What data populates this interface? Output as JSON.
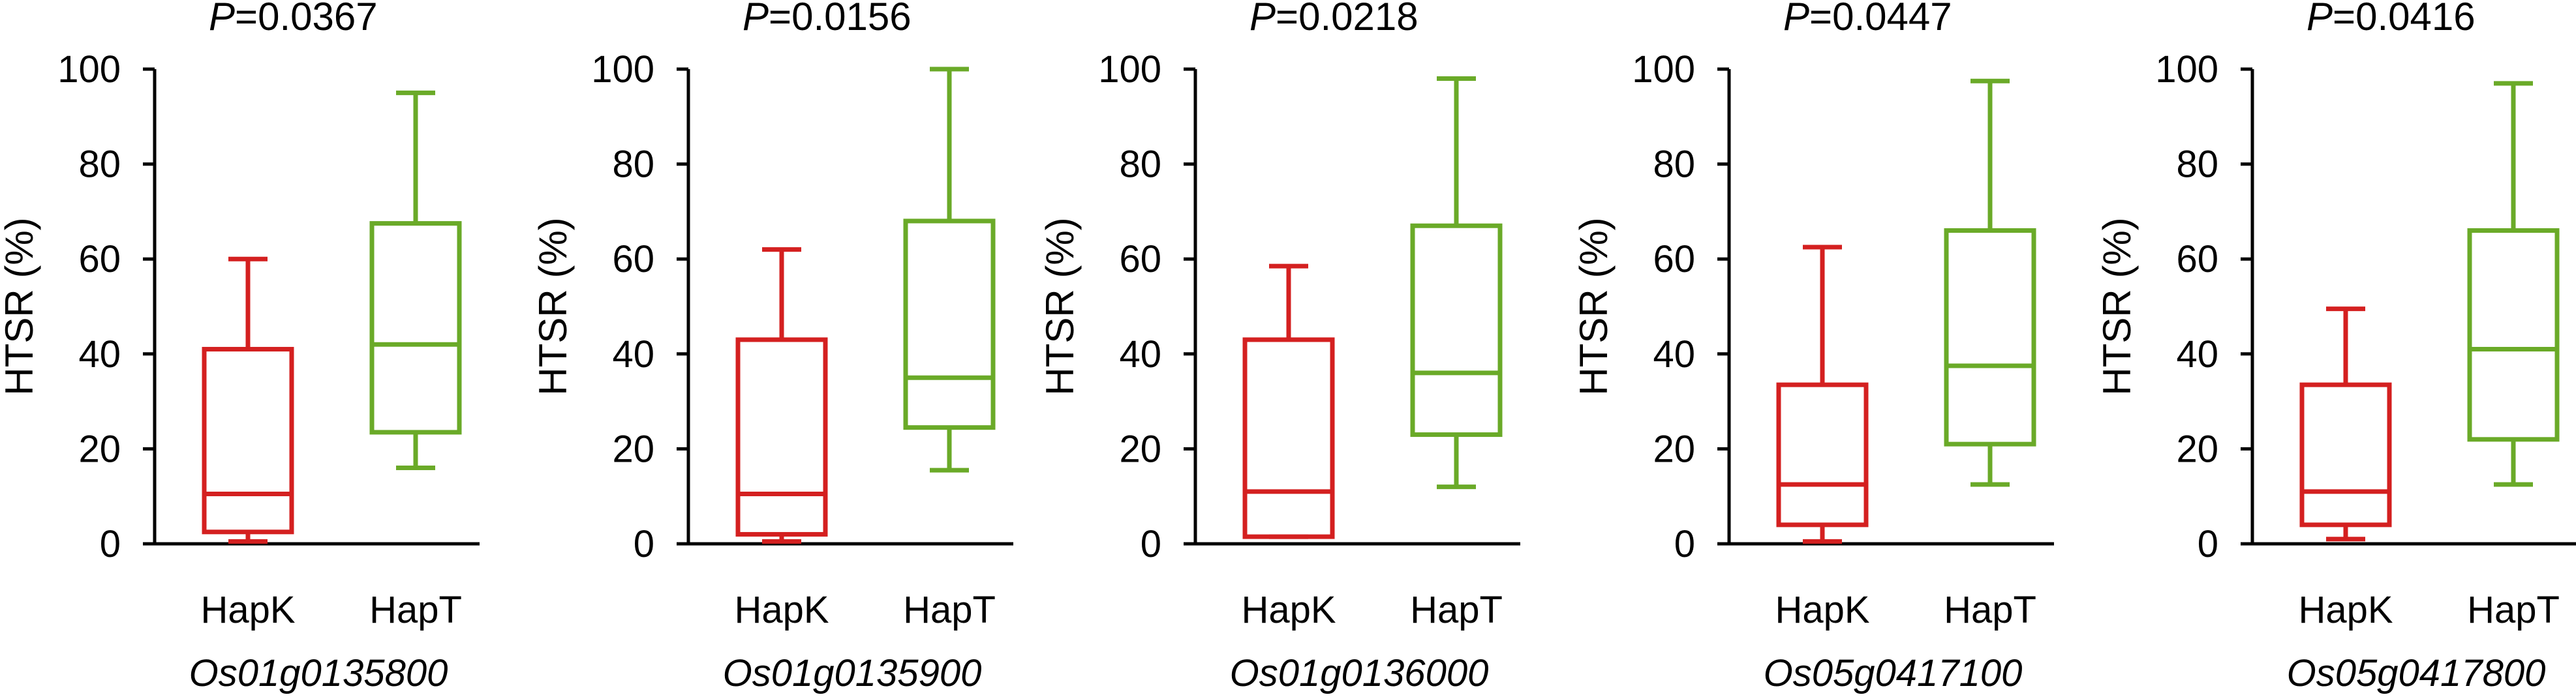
{
  "colors": {
    "HapK": "#d42020",
    "HapT": "#6aaa28",
    "axis": "#000000"
  },
  "chart_data": [
    {
      "type": "box",
      "pvalue": "=0.0367",
      "gene": "Os01g0135800",
      "ylabel": "HTSR (%)",
      "ylim": [
        0,
        100
      ],
      "yticks": [
        "0",
        "20",
        "40",
        "60",
        "80",
        "100"
      ],
      "categories": [
        "HapK",
        "HapT"
      ],
      "boxes": [
        {
          "name": "HapK",
          "min": 0.5,
          "q1": 2.5,
          "median": 10.5,
          "q3": 41,
          "max": 60
        },
        {
          "name": "HapT",
          "min": 16,
          "q1": 23.5,
          "median": 42,
          "q3": 67.5,
          "max": 95
        }
      ]
    },
    {
      "type": "box",
      "pvalue": "=0.0156",
      "gene": "Os01g0135900",
      "ylabel": "HTSR (%)",
      "ylim": [
        0,
        100
      ],
      "yticks": [
        "0",
        "20",
        "40",
        "60",
        "80",
        "100"
      ],
      "categories": [
        "HapK",
        "HapT"
      ],
      "boxes": [
        {
          "name": "HapK",
          "min": 0.5,
          "q1": 2,
          "median": 10.5,
          "q3": 43,
          "max": 62
        },
        {
          "name": "HapT",
          "min": 15.5,
          "q1": 24.5,
          "median": 35,
          "q3": 68,
          "max": 100
        }
      ]
    },
    {
      "type": "box",
      "pvalue": "=0.0218",
      "gene": "Os01g0136000",
      "ylabel": "HTSR (%)",
      "ylim": [
        0,
        100
      ],
      "yticks": [
        "0",
        "20",
        "40",
        "60",
        "80",
        "100"
      ],
      "categories": [
        "HapK",
        "HapT"
      ],
      "boxes": [
        {
          "name": "HapK",
          "min": 1.5,
          "q1": 1.5,
          "median": 11,
          "q3": 43,
          "max": 58.5
        },
        {
          "name": "HapT",
          "min": 12,
          "q1": 23,
          "median": 36,
          "q3": 67,
          "max": 98
        }
      ]
    },
    {
      "type": "box",
      "pvalue": "=0.0447",
      "gene": "Os05g0417100",
      "ylabel": "HTSR (%)",
      "ylim": [
        0,
        100
      ],
      "yticks": [
        "0",
        "20",
        "40",
        "60",
        "80",
        "100"
      ],
      "categories": [
        "HapK",
        "HapT"
      ],
      "boxes": [
        {
          "name": "HapK",
          "min": 0.5,
          "q1": 4,
          "median": 12.5,
          "q3": 33.5,
          "max": 62.5
        },
        {
          "name": "HapT",
          "min": 12.5,
          "q1": 21,
          "median": 37.5,
          "q3": 66,
          "max": 97.5
        }
      ]
    },
    {
      "type": "box",
      "pvalue": "=0.0416",
      "gene": "Os05g0417800",
      "ylabel": "HTSR (%)",
      "ylim": [
        0,
        100
      ],
      "yticks": [
        "0",
        "20",
        "40",
        "60",
        "80",
        "100"
      ],
      "categories": [
        "HapK",
        "HapT"
      ],
      "boxes": [
        {
          "name": "HapK",
          "min": 1,
          "q1": 4,
          "median": 11,
          "q3": 33.5,
          "max": 49.5
        },
        {
          "name": "HapT",
          "min": 12.5,
          "q1": 22,
          "median": 41,
          "q3": 66,
          "max": 97
        }
      ]
    }
  ]
}
